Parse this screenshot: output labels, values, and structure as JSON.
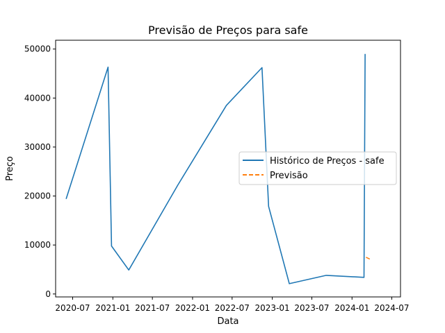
{
  "chart_data": {
    "type": "line",
    "title": "Previsão de Preços para safe",
    "xlabel": "Data",
    "ylabel": "Preço",
    "xlim": [
      "2020-04-14",
      "2024-08-10"
    ],
    "ylim": [
      -600,
      51800
    ],
    "x_ticks": [
      {
        "date": "2020-07-01",
        "label": "2020-07"
      },
      {
        "date": "2021-01-01",
        "label": "2021-01"
      },
      {
        "date": "2021-07-01",
        "label": "2021-07"
      },
      {
        "date": "2022-01-01",
        "label": "2022-01"
      },
      {
        "date": "2022-07-01",
        "label": "2022-07"
      },
      {
        "date": "2023-01-01",
        "label": "2023-01"
      },
      {
        "date": "2023-07-01",
        "label": "2023-07"
      },
      {
        "date": "2024-01-01",
        "label": "2024-01"
      },
      {
        "date": "2024-07-01",
        "label": "2024-07"
      }
    ],
    "y_ticks": [
      {
        "value": 0,
        "label": "0"
      },
      {
        "value": 10000,
        "label": "10000"
      },
      {
        "value": 20000,
        "label": "20000"
      },
      {
        "value": 30000,
        "label": "30000"
      },
      {
        "value": 40000,
        "label": "40000"
      },
      {
        "value": 50000,
        "label": "50000"
      }
    ],
    "grid": false,
    "legend_position": "center-right",
    "series": [
      {
        "name": "Histórico de Preços - safe",
        "color": "#1f77b4",
        "style": "solid",
        "points": [
          {
            "x": "2020-06-01",
            "y": 19400
          },
          {
            "x": "2020-12-10",
            "y": 46300
          },
          {
            "x": "2020-12-26",
            "y": 9800
          },
          {
            "x": "2021-03-15",
            "y": 4900
          },
          {
            "x": "2021-10-25",
            "y": 22200
          },
          {
            "x": "2022-06-05",
            "y": 38500
          },
          {
            "x": "2022-11-15",
            "y": 46200
          },
          {
            "x": "2022-12-15",
            "y": 17900
          },
          {
            "x": "2023-03-20",
            "y": 2100
          },
          {
            "x": "2023-09-05",
            "y": 3800
          },
          {
            "x": "2024-02-25",
            "y": 3400
          },
          {
            "x": "2024-03-01",
            "y": 49000
          }
        ]
      },
      {
        "name": "Previsão",
        "color": "#ff7f0e",
        "style": "dashed",
        "points": [
          {
            "x": "2024-03-05",
            "y": 7500
          },
          {
            "x": "2024-03-28",
            "y": 7000
          }
        ]
      }
    ]
  }
}
